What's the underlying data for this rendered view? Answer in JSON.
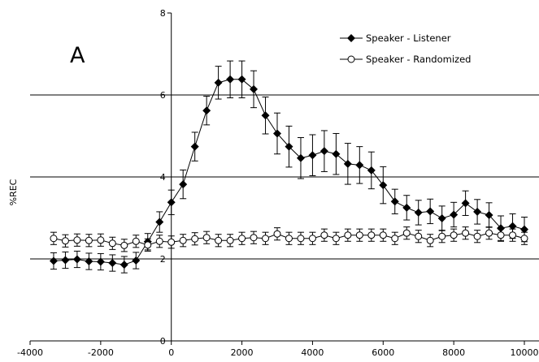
{
  "chart_data": {
    "type": "line",
    "panel_label": "A",
    "ylabel": "%REC",
    "xlabel": "",
    "xlim": [
      -4000,
      10000
    ],
    "ylim": [
      0,
      8
    ],
    "x_ticks": [
      -4000,
      -2000,
      0,
      2000,
      4000,
      6000,
      8000,
      10000
    ],
    "y_ticks": [
      0,
      2,
      4,
      6,
      8
    ],
    "x_tick_labels": [
      "-4000",
      "-2000",
      "0",
      "2000",
      "4000",
      "6000",
      "8000",
      "10000"
    ],
    "y_tick_labels": [
      "0",
      "2",
      "4",
      "6",
      "8"
    ],
    "horizontal_gridlines": [
      2,
      4,
      6
    ],
    "legend_position": "top-right",
    "x": [
      -3333,
      -3000,
      -2667,
      -2333,
      -2000,
      -1667,
      -1333,
      -1000,
      -667,
      -333,
      0,
      333,
      667,
      1000,
      1333,
      1667,
      2000,
      2333,
      2667,
      3000,
      3333,
      3667,
      4000,
      4333,
      4667,
      5000,
      5333,
      5667,
      6000,
      6333,
      6667,
      7000,
      7333,
      7667,
      8000,
      8333,
      8667,
      9000,
      9333,
      9667,
      10000
    ],
    "series": [
      {
        "name": "Speaker - Listener",
        "marker": "filled-diamond",
        "values": [
          1.95,
          1.97,
          1.99,
          1.94,
          1.93,
          1.9,
          1.86,
          1.96,
          2.42,
          2.9,
          3.38,
          3.82,
          4.74,
          5.62,
          6.3,
          6.38,
          6.38,
          6.14,
          5.5,
          5.06,
          4.74,
          4.46,
          4.53,
          4.63,
          4.56,
          4.32,
          4.29,
          4.16,
          3.8,
          3.4,
          3.25,
          3.13,
          3.16,
          2.99,
          3.08,
          3.36,
          3.15,
          3.07,
          2.75,
          2.8,
          2.72
        ],
        "errors": [
          0.2,
          0.2,
          0.2,
          0.2,
          0.2,
          0.2,
          0.2,
          0.2,
          0.2,
          0.25,
          0.3,
          0.35,
          0.35,
          0.35,
          0.4,
          0.45,
          0.45,
          0.45,
          0.45,
          0.5,
          0.5,
          0.5,
          0.5,
          0.5,
          0.5,
          0.5,
          0.45,
          0.45,
          0.45,
          0.3,
          0.3,
          0.3,
          0.3,
          0.3,
          0.3,
          0.3,
          0.3,
          0.3,
          0.3,
          0.3,
          0.3
        ]
      },
      {
        "name": "Speaker - Randomized",
        "marker": "open-circle",
        "values": [
          2.5,
          2.44,
          2.46,
          2.45,
          2.46,
          2.38,
          2.33,
          2.43,
          2.34,
          2.43,
          2.41,
          2.45,
          2.49,
          2.52,
          2.45,
          2.45,
          2.5,
          2.52,
          2.5,
          2.61,
          2.5,
          2.5,
          2.5,
          2.58,
          2.5,
          2.58,
          2.58,
          2.58,
          2.58,
          2.5,
          2.63,
          2.55,
          2.45,
          2.55,
          2.58,
          2.63,
          2.55,
          2.63,
          2.58,
          2.58,
          2.5
        ],
        "errors": [
          0.15,
          0.15,
          0.15,
          0.15,
          0.15,
          0.15,
          0.15,
          0.15,
          0.15,
          0.15,
          0.15,
          0.15,
          0.15,
          0.15,
          0.15,
          0.15,
          0.15,
          0.15,
          0.15,
          0.15,
          0.15,
          0.15,
          0.15,
          0.15,
          0.15,
          0.15,
          0.15,
          0.15,
          0.15,
          0.15,
          0.15,
          0.15,
          0.15,
          0.15,
          0.15,
          0.15,
          0.15,
          0.15,
          0.15,
          0.15,
          0.15
        ]
      }
    ]
  }
}
